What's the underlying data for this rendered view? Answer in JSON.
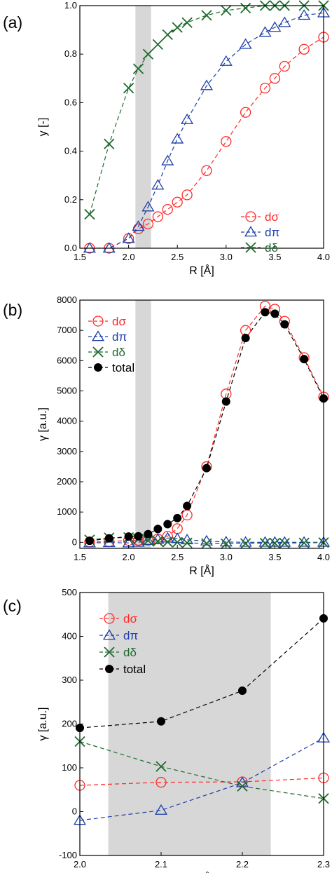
{
  "colors": {
    "dsigma": "#ff2a2a",
    "dpi": "#1d3fa8",
    "ddelta": "#1e6b2e",
    "total": "#000000",
    "band": "#d3d3d3"
  },
  "chart_data": [
    {
      "panel_label": "(a)",
      "type": "line",
      "xlabel": "R [Å]",
      "ylabel": "y [-]",
      "xlim": [
        1.5,
        4.0
      ],
      "ylim": [
        0,
        1.0
      ],
      "xticks": [
        "1.5",
        "2.0",
        "2.5",
        "3.0",
        "3.5",
        "4.0"
      ],
      "yticks": [
        "0.0",
        "0.2",
        "0.4",
        "0.6",
        "0.8",
        "1.0"
      ],
      "shaded_band": [
        2.07,
        2.23
      ],
      "legend": "bottom-right",
      "grid": false,
      "series": [
        {
          "name": "dσ",
          "marker": "circle",
          "color": "#ff2a2a",
          "x": [
            1.6,
            1.8,
            2.0,
            2.1,
            2.2,
            2.3,
            2.4,
            2.5,
            2.6,
            2.8,
            3.0,
            3.2,
            3.4,
            3.5,
            3.6,
            3.8,
            4.0
          ],
          "y": [
            0,
            0,
            0.04,
            0.08,
            0.1,
            0.13,
            0.16,
            0.19,
            0.22,
            0.32,
            0.44,
            0.56,
            0.66,
            0.7,
            0.75,
            0.82,
            0.87
          ]
        },
        {
          "name": "dπ",
          "marker": "triangle",
          "color": "#1d3fa8",
          "x": [
            1.6,
            1.8,
            2.0,
            2.1,
            2.2,
            2.3,
            2.4,
            2.5,
            2.6,
            2.8,
            3.0,
            3.2,
            3.4,
            3.5,
            3.6,
            3.8,
            4.0
          ],
          "y": [
            0,
            0,
            0.04,
            0.09,
            0.17,
            0.26,
            0.36,
            0.45,
            0.53,
            0.67,
            0.77,
            0.84,
            0.89,
            0.91,
            0.93,
            0.96,
            0.97
          ]
        },
        {
          "name": "dδ",
          "marker": "cross",
          "color": "#1e6b2e",
          "x": [
            1.6,
            1.8,
            2.0,
            2.1,
            2.2,
            2.3,
            2.4,
            2.5,
            2.6,
            2.8,
            3.0,
            3.2,
            3.4,
            3.5,
            3.6,
            3.8,
            4.0
          ],
          "y": [
            0.14,
            0.43,
            0.66,
            0.74,
            0.8,
            0.84,
            0.88,
            0.91,
            0.93,
            0.96,
            0.98,
            0.99,
            1.0,
            1.0,
            1.0,
            1.0,
            1.0
          ]
        }
      ]
    },
    {
      "panel_label": "(b)",
      "type": "line",
      "xlabel": "R [Å]",
      "ylabel": "γ [a.u.]",
      "xlim": [
        1.5,
        4.0
      ],
      "ylim": [
        -200,
        8000
      ],
      "xticks": [
        "1.5",
        "2.0",
        "2.5",
        "3.0",
        "3.5",
        "4.0"
      ],
      "yticks": [
        "0",
        "1000",
        "2000",
        "3000",
        "4000",
        "5000",
        "6000",
        "7000",
        "8000"
      ],
      "shaded_band": [
        2.07,
        2.23
      ],
      "legend": "top-left",
      "grid": false,
      "series": [
        {
          "name": "dσ",
          "marker": "circle",
          "color": "#ff2a2a",
          "x": [
            1.6,
            1.8,
            2.0,
            2.1,
            2.2,
            2.3,
            2.4,
            2.5,
            2.6,
            2.8,
            3.0,
            3.2,
            3.4,
            3.5,
            3.6,
            3.8,
            4.0
          ],
          "y": [
            10,
            20,
            60,
            65,
            70,
            110,
            200,
            450,
            900,
            2500,
            4900,
            7000,
            7800,
            7700,
            7300,
            6100,
            4800
          ]
        },
        {
          "name": "dπ",
          "marker": "triangle",
          "color": "#1d3fa8",
          "x": [
            1.6,
            1.8,
            2.0,
            2.1,
            2.2,
            2.3,
            2.4,
            2.5,
            2.6,
            2.8,
            3.0,
            3.2,
            3.4,
            3.5,
            3.6,
            3.8,
            4.0
          ],
          "y": [
            -20,
            -10,
            -20,
            0,
            60,
            100,
            140,
            120,
            80,
            40,
            10,
            0,
            0,
            0,
            0,
            0,
            0
          ]
        },
        {
          "name": "dδ",
          "marker": "cross",
          "color": "#1e6b2e",
          "x": [
            1.6,
            1.8,
            2.0,
            2.1,
            2.2,
            2.3,
            2.4,
            2.5,
            2.6,
            2.8,
            3.0,
            3.2,
            3.4,
            3.5,
            3.6,
            3.8,
            4.0
          ],
          "y": [
            80,
            150,
            160,
            100,
            60,
            30,
            10,
            0,
            -20,
            -40,
            -50,
            -40,
            -30,
            -30,
            -30,
            -20,
            -10
          ]
        },
        {
          "name": "total",
          "marker": "dot",
          "color": "#000000",
          "x": [
            1.6,
            1.8,
            2.0,
            2.1,
            2.2,
            2.3,
            2.4,
            2.5,
            2.6,
            2.8,
            3.0,
            3.2,
            3.4,
            3.5,
            3.6,
            3.8,
            4.0
          ],
          "y": [
            50,
            130,
            190,
            200,
            270,
            440,
            600,
            800,
            1200,
            2450,
            4650,
            6750,
            7600,
            7550,
            7200,
            6050,
            4750
          ]
        }
      ]
    },
    {
      "panel_label": "(c)",
      "type": "line",
      "xlabel": "R [Å]",
      "ylabel": "γ [a.u.]",
      "xlim": [
        2.0,
        2.3
      ],
      "ylim": [
        -100,
        500
      ],
      "xticks": [
        "2.0",
        "2.1",
        "2.2",
        "2.3"
      ],
      "yticks": [
        "-100",
        "0",
        "100",
        "200",
        "300",
        "400",
        "500"
      ],
      "shaded_band": [
        2.035,
        2.235
      ],
      "legend": "top-left",
      "grid": false,
      "series": [
        {
          "name": "dσ",
          "marker": "circle",
          "color": "#ff2a2a",
          "x": [
            2.0,
            2.1,
            2.2,
            2.3
          ],
          "y": [
            60,
            67,
            68,
            77
          ]
        },
        {
          "name": "dπ",
          "marker": "triangle",
          "color": "#1d3fa8",
          "x": [
            2.0,
            2.1,
            2.2,
            2.3
          ],
          "y": [
            -20,
            3,
            66,
            168
          ]
        },
        {
          "name": "dδ",
          "marker": "cross",
          "color": "#1e6b2e",
          "x": [
            2.0,
            2.1,
            2.2,
            2.3
          ],
          "y": [
            160,
            103,
            58,
            30
          ]
        },
        {
          "name": "total",
          "marker": "dot",
          "color": "#000000",
          "x": [
            2.0,
            2.1,
            2.2,
            2.3
          ],
          "y": [
            191,
            206,
            276,
            441
          ]
        }
      ]
    }
  ]
}
